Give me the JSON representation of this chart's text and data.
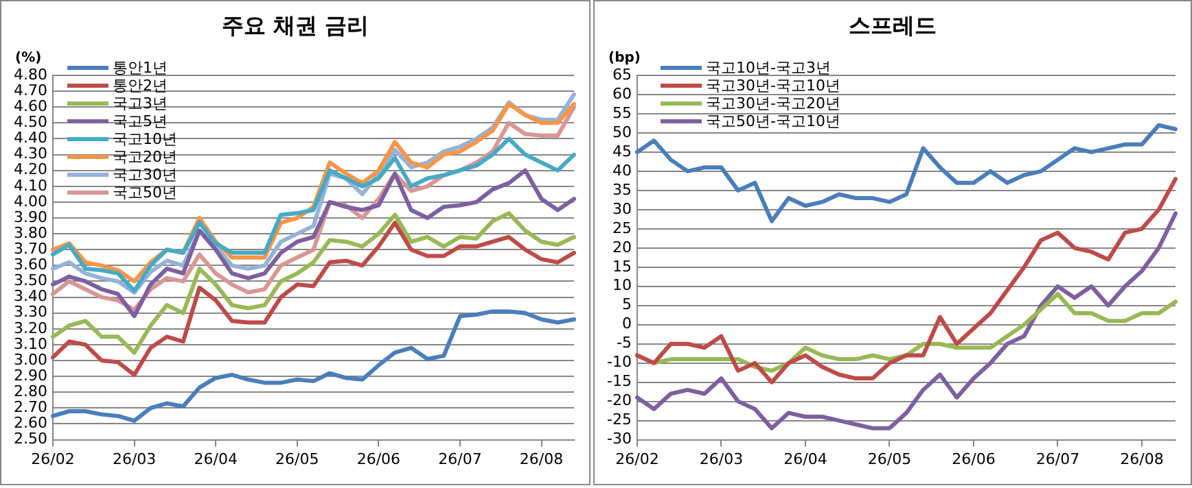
{
  "chart_data": [
    {
      "type": "line",
      "title": "주요 채권 금리",
      "ylabel": "(%)",
      "categories": [
        "26/02",
        null,
        null,
        null,
        null,
        "26/03",
        null,
        null,
        null,
        null,
        "26/04",
        null,
        null,
        null,
        null,
        "26/05",
        null,
        null,
        null,
        null,
        "26/06",
        null,
        null,
        null,
        null,
        "26/07",
        null,
        null,
        null,
        null,
        "26/08",
        null,
        null
      ],
      "series": [
        {
          "name": "통안1년",
          "color": "#4a7ebb",
          "values": [
            2.65,
            2.68,
            2.68,
            2.66,
            2.65,
            2.62,
            2.7,
            2.73,
            2.71,
            2.83,
            2.89,
            2.91,
            2.88,
            2.86,
            2.86,
            2.88,
            2.87,
            2.92,
            2.89,
            2.88,
            2.97,
            3.05,
            3.08,
            3.01,
            3.03,
            3.28,
            3.29,
            3.31,
            3.31,
            3.3,
            3.26,
            3.24,
            3.26
          ]
        },
        {
          "name": "통안2년",
          "color": "#be4b48",
          "values": [
            3.02,
            3.12,
            3.1,
            3.0,
            2.99,
            2.91,
            3.08,
            3.15,
            3.12,
            3.46,
            3.38,
            3.25,
            3.24,
            3.24,
            3.4,
            3.48,
            3.47,
            3.62,
            3.63,
            3.6,
            3.72,
            3.87,
            3.7,
            3.66,
            3.66,
            3.72,
            3.72,
            3.75,
            3.78,
            3.7,
            3.64,
            3.62,
            3.68
          ]
        },
        {
          "name": "국고3년",
          "color": "#98b954",
          "values": [
            3.15,
            3.22,
            3.25,
            3.15,
            3.15,
            3.05,
            3.22,
            3.35,
            3.3,
            3.58,
            3.48,
            3.35,
            3.33,
            3.35,
            3.5,
            3.55,
            3.62,
            3.76,
            3.75,
            3.72,
            3.8,
            3.92,
            3.75,
            3.78,
            3.72,
            3.78,
            3.77,
            3.88,
            3.93,
            3.82,
            3.75,
            3.73,
            3.78
          ]
        },
        {
          "name": "국고5년",
          "color": "#7d60a0",
          "values": [
            3.48,
            3.53,
            3.5,
            3.45,
            3.42,
            3.28,
            3.48,
            3.58,
            3.55,
            3.82,
            3.7,
            3.55,
            3.52,
            3.55,
            3.68,
            3.75,
            3.78,
            4.0,
            3.97,
            3.95,
            3.98,
            4.18,
            3.95,
            3.9,
            3.97,
            3.98,
            4.0,
            4.08,
            4.12,
            4.2,
            4.02,
            3.95,
            4.02
          ]
        },
        {
          "name": "국고10년",
          "color": "#46aac5",
          "values": [
            3.67,
            3.73,
            3.58,
            3.57,
            3.55,
            3.44,
            3.6,
            3.7,
            3.68,
            3.87,
            3.74,
            3.68,
            3.68,
            3.68,
            3.92,
            3.93,
            3.95,
            4.2,
            4.15,
            4.1,
            4.15,
            4.28,
            4.1,
            4.15,
            4.17,
            4.2,
            4.23,
            4.3,
            4.4,
            4.3,
            4.25,
            4.2,
            4.3
          ]
        },
        {
          "name": "국고20년",
          "color": "#f79646",
          "values": [
            3.7,
            3.74,
            3.62,
            3.6,
            3.57,
            3.5,
            3.62,
            3.7,
            3.68,
            3.9,
            3.75,
            3.65,
            3.65,
            3.65,
            3.87,
            3.9,
            3.97,
            4.25,
            4.18,
            4.12,
            4.2,
            4.38,
            4.25,
            4.22,
            4.3,
            4.32,
            4.38,
            4.45,
            4.62,
            4.55,
            4.5,
            4.5,
            4.62
          ]
        },
        {
          "name": "국고30년",
          "color": "#95b3d7",
          "values": [
            3.58,
            3.62,
            3.55,
            3.52,
            3.5,
            3.43,
            3.56,
            3.63,
            3.6,
            3.82,
            3.72,
            3.6,
            3.58,
            3.6,
            3.75,
            3.8,
            3.85,
            4.18,
            4.15,
            4.05,
            4.18,
            4.33,
            4.22,
            4.25,
            4.32,
            4.35,
            4.4,
            4.47,
            4.63,
            4.55,
            4.52,
            4.52,
            4.68
          ]
        },
        {
          "name": "국고50년",
          "color": "#d99694",
          "values": [
            3.42,
            3.5,
            3.45,
            3.4,
            3.38,
            3.32,
            3.45,
            3.52,
            3.5,
            3.67,
            3.55,
            3.48,
            3.43,
            3.45,
            3.6,
            3.65,
            3.7,
            4.0,
            3.98,
            3.9,
            4.02,
            4.18,
            4.07,
            4.1,
            4.17,
            4.2,
            4.25,
            4.32,
            4.5,
            4.43,
            4.42,
            4.42,
            4.6
          ]
        }
      ],
      "ylim": [
        2.5,
        4.8
      ],
      "yticks": [
        {
          "value": 2.5,
          "label": "2.50"
        },
        {
          "value": 2.6,
          "label": "2.60"
        },
        {
          "value": 2.7,
          "label": "2.70"
        },
        {
          "value": 2.8,
          "label": "2.80"
        },
        {
          "value": 2.9,
          "label": "2.90"
        },
        {
          "value": 3.0,
          "label": "3.00"
        },
        {
          "value": 3.1,
          "label": "3.10"
        },
        {
          "value": 3.2,
          "label": "3.20"
        },
        {
          "value": 3.3,
          "label": "3.30"
        },
        {
          "value": 3.4,
          "label": "3.40"
        },
        {
          "value": 3.5,
          "label": "3.50"
        },
        {
          "value": 3.6,
          "label": "3.60"
        },
        {
          "value": 3.7,
          "label": "3.70"
        },
        {
          "value": 3.8,
          "label": "3.80"
        },
        {
          "value": 3.9,
          "label": "3.90"
        },
        {
          "value": 4.0,
          "label": "4.00"
        },
        {
          "value": 4.1,
          "label": "4.10"
        },
        {
          "value": 4.2,
          "label": "4.20"
        },
        {
          "value": 4.3,
          "label": "4.30"
        },
        {
          "value": 4.4,
          "label": "4.40"
        },
        {
          "value": 4.5,
          "label": "4.50"
        },
        {
          "value": 4.6,
          "label": "4.60"
        },
        {
          "value": 4.7,
          "label": "4.70"
        },
        {
          "value": 4.8,
          "label": "4.80"
        }
      ],
      "grid": "y",
      "legend": "top left",
      "marker": "none",
      "line_style": "solid"
    },
    {
      "type": "line",
      "title": "스프레드",
      "ylabel": "(bp)",
      "categories": [
        "26/02",
        null,
        null,
        null,
        null,
        "26/03",
        null,
        null,
        null,
        null,
        "26/04",
        null,
        null,
        null,
        null,
        "26/05",
        null,
        null,
        null,
        null,
        "26/06",
        null,
        null,
        null,
        null,
        "26/07",
        null,
        null,
        null,
        null,
        "26/08",
        null,
        null
      ],
      "series": [
        {
          "name": "국고10년-국고3년",
          "color": "#4a7ebb",
          "values": [
            45,
            48,
            43,
            40,
            41,
            41,
            35,
            37,
            27,
            33,
            31,
            32,
            34,
            33,
            33,
            32,
            34,
            46,
            41,
            37,
            37,
            40,
            37,
            39,
            40,
            43,
            46,
            45,
            46,
            47,
            47,
            52,
            51
          ]
        },
        {
          "name": "국고30년-국고10년",
          "color": "#be4b48",
          "values": [
            -8,
            -10,
            -5,
            -5,
            -6,
            -3,
            -12,
            -10,
            -15,
            -10,
            -8,
            -11,
            -13,
            -14,
            -14,
            -10,
            -8,
            -8,
            2,
            -5,
            -1,
            3,
            9,
            15,
            22,
            24,
            20,
            19,
            17,
            24,
            25,
            30,
            38
          ]
        },
        {
          "name": "국고30년-국고20년",
          "color": "#98b954",
          "values": [
            -8,
            -10,
            -9,
            -9,
            -9,
            -9,
            -9,
            -11,
            -12,
            -10,
            -6,
            -8,
            -9,
            -9,
            -8,
            -9,
            -8,
            -5,
            -5,
            -6,
            -6,
            -6,
            -3,
            0,
            4,
            8,
            3,
            3,
            1,
            1,
            3,
            3,
            6
          ]
        },
        {
          "name": "국고50년-국고10년",
          "color": "#7d60a0",
          "values": [
            -19,
            -22,
            -18,
            -17,
            -18,
            -14,
            -20,
            -22,
            -27,
            -23,
            -24,
            -24,
            -25,
            -26,
            -27,
            -27,
            -23,
            -17,
            -13,
            -19,
            -14,
            -10,
            -5,
            -3,
            5,
            10,
            7,
            10,
            5,
            10,
            14,
            20,
            29
          ]
        }
      ],
      "ylim": [
        -30,
        65
      ],
      "yticks": [
        -30,
        -25,
        -20,
        -15,
        -10,
        -5,
        0,
        5,
        10,
        15,
        20,
        25,
        30,
        35,
        40,
        45,
        50,
        55,
        60,
        65
      ],
      "grid": "y",
      "legend": "top left",
      "marker": "none",
      "line_style": "solid"
    }
  ]
}
